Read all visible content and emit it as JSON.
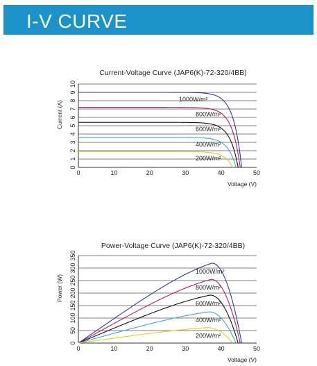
{
  "header": {
    "title": "I-V CURVE"
  },
  "colors": {
    "banner": "#1b93c8",
    "1000": "#2f3b8f",
    "800": "#b01e6d",
    "600": "#111111",
    "400": "#38a8d8",
    "200": "#d8d21e"
  },
  "chart_data": [
    {
      "type": "line",
      "title": "Current-Voltage Curve (JAP6(K)-72-320/4BB)",
      "xlabel": "Voltage (V)",
      "ylabel": "Current (A)",
      "xlim": [
        0,
        50
      ],
      "ylim": [
        0,
        10
      ],
      "xticks": [
        0,
        10,
        20,
        30,
        40,
        50
      ],
      "yticks": [
        0,
        1,
        2,
        3,
        4,
        5,
        6,
        7,
        8,
        9,
        10
      ],
      "grid": true,
      "series": [
        {
          "name": "1000W/m²",
          "color_key": "1000",
          "isc": 9.0,
          "voc": 45.8
        },
        {
          "name": "800W/m²",
          "color_key": "800",
          "isc": 7.2,
          "voc": 45.4
        },
        {
          "name": "600W/m²",
          "color_key": "600",
          "isc": 5.4,
          "voc": 44.8
        },
        {
          "name": "400W/m²",
          "color_key": "400",
          "isc": 3.6,
          "voc": 44.2
        },
        {
          "name": "200W/m²",
          "color_key": "200",
          "isc": 1.9,
          "voc": 43.3
        }
      ]
    },
    {
      "type": "line",
      "title": "Power-Voltage Curve (JAP6(K)-72-320/4BB)",
      "xlabel": "Voltage (V)",
      "ylabel": "Power (W)",
      "xlim": [
        0,
        50
      ],
      "ylim": [
        0,
        350
      ],
      "xticks": [
        0,
        10,
        20,
        30,
        40,
        50
      ],
      "yticks": [
        0,
        50,
        100,
        150,
        200,
        250,
        300,
        350
      ],
      "grid": true,
      "series": [
        {
          "name": "1000W/m²",
          "color_key": "1000",
          "vmp": 37.5,
          "pmax": 320,
          "voc": 45.8
        },
        {
          "name": "800W/m²",
          "color_key": "800",
          "vmp": 37.3,
          "pmax": 255,
          "voc": 45.4
        },
        {
          "name": "600W/m²",
          "color_key": "600",
          "vmp": 37.0,
          "pmax": 192,
          "voc": 44.8
        },
        {
          "name": "400W/m²",
          "color_key": "400",
          "vmp": 36.7,
          "pmax": 125,
          "voc": 44.2
        },
        {
          "name": "200W/m²",
          "color_key": "200",
          "vmp": 36.2,
          "pmax": 62,
          "voc": 43.3
        }
      ]
    }
  ]
}
